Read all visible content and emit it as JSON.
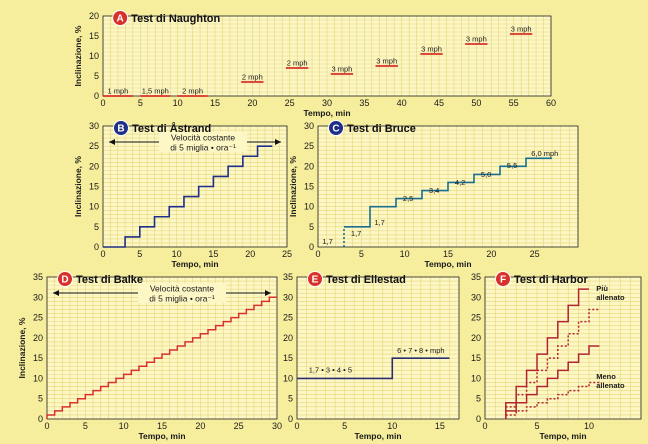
{
  "colors": {
    "background": "#f6ee9d",
    "plot": "#fdf7c6",
    "grid": "#e4d676",
    "red": "#d8312b",
    "navy": "#1f2e86",
    "teal": "#1b6f8a",
    "ellestad": "#2a2f6b",
    "harbor": "#b3242c"
  },
  "chart_data": [
    {
      "badge": "A",
      "title": "Test di Naughton",
      "type": "line",
      "xlabel": "Tempo, min",
      "ylabel": "Inclinazione, %",
      "xlim": [
        0,
        60
      ],
      "ylim": [
        0,
        20
      ],
      "xticks": [
        0,
        5,
        10,
        15,
        20,
        25,
        30,
        35,
        40,
        45,
        50,
        55,
        60
      ],
      "yticks": [
        0,
        5,
        10,
        15,
        20
      ],
      "stages": [
        {
          "x0": 0,
          "x1": 4,
          "y": 0,
          "label": "1 mph"
        },
        {
          "x0": 5,
          "x1": 9,
          "y": 0,
          "label": "1,5 mph"
        },
        {
          "x0": 10,
          "x1": 14,
          "y": 0,
          "label": "2 mph"
        },
        {
          "x0": 18.5,
          "x1": 21.5,
          "y": 3.5,
          "label": "2 mph"
        },
        {
          "x0": 24.5,
          "x1": 27.5,
          "y": 7,
          "label": "2 mph"
        },
        {
          "x0": 30.5,
          "x1": 33.5,
          "y": 5.5,
          "label": "3 mph"
        },
        {
          "x0": 36.5,
          "x1": 39.5,
          "y": 7.5,
          "label": "3 mph"
        },
        {
          "x0": 42.5,
          "x1": 45.5,
          "y": 10.5,
          "label": "3 mph"
        },
        {
          "x0": 48.5,
          "x1": 51.5,
          "y": 13,
          "label": "3 mph"
        },
        {
          "x0": 54.5,
          "x1": 57.5,
          "y": 15.5,
          "label": "3 mph"
        }
      ]
    },
    {
      "badge": "B",
      "title": "Test di Åstrand",
      "type": "line",
      "xlabel": "Tempo, min",
      "ylabel": "Inclinazione, %",
      "xlim": [
        0,
        25
      ],
      "ylim": [
        0,
        30
      ],
      "xticks": [
        0,
        5,
        10,
        15,
        20,
        25
      ],
      "yticks": [
        0,
        5,
        10,
        15,
        20,
        25,
        30
      ],
      "note": [
        "Velocità costante",
        "di 5 miglia • ora⁻¹"
      ],
      "steps": {
        "x": [
          0,
          3,
          5,
          7,
          9,
          11,
          13,
          15,
          17,
          19,
          21,
          23
        ],
        "y": [
          0,
          2.5,
          5,
          7.5,
          10,
          12.5,
          15,
          17.5,
          20,
          22.5,
          25,
          25
        ]
      }
    },
    {
      "badge": "C",
      "title": "Test di Bruce",
      "type": "line",
      "xlabel": "Tempo, min",
      "ylabel": "Inclinazione, %",
      "xlim": [
        0,
        30
      ],
      "ylim": [
        0,
        30
      ],
      "xticks": [
        0,
        5,
        10,
        15,
        20,
        25
      ],
      "yticks": [
        0,
        5,
        10,
        15,
        20,
        25,
        30
      ],
      "steps": {
        "x": [
          3,
          6,
          9,
          12,
          15,
          18,
          21,
          24,
          27
        ],
        "y": [
          5,
          10,
          12,
          14,
          16,
          18,
          20,
          22,
          22
        ]
      },
      "dotted": {
        "x": [
          3,
          3
        ],
        "y": [
          0,
          5
        ]
      },
      "speeds": [
        {
          "x": 0.5,
          "y": 0.7,
          "label": "1,7"
        },
        {
          "x": 3.8,
          "y": 2.7,
          "label": "1,7"
        },
        {
          "x": 6.5,
          "y": 5.5,
          "label": "1,7"
        },
        {
          "x": 9.8,
          "y": 11.4,
          "label": "2,5"
        },
        {
          "x": 12.8,
          "y": 13.4,
          "label": "3,4"
        },
        {
          "x": 15.8,
          "y": 15.4,
          "label": "4,2"
        },
        {
          "x": 18.8,
          "y": 17.4,
          "label": "5,0"
        },
        {
          "x": 21.8,
          "y": 19.6,
          "label": "5,5"
        },
        {
          "x": 24.6,
          "y": 22.6,
          "label": "6,0 mph"
        }
      ]
    },
    {
      "badge": "D",
      "title": "Test di Balke",
      "type": "line",
      "xlabel": "Tempo, min",
      "ylabel": "Inclinazione, %",
      "xlim": [
        0,
        30
      ],
      "ylim": [
        0,
        35
      ],
      "xticks": [
        0,
        5,
        10,
        15,
        20,
        25,
        30
      ],
      "yticks": [
        0,
        5,
        10,
        15,
        20,
        25,
        30,
        35
      ],
      "note": [
        "Velocità costante",
        "di 5 miglia • ora⁻¹"
      ],
      "step_every_min": 1,
      "step_size": 1,
      "start": 1,
      "end": 30
    },
    {
      "badge": "E",
      "title": "Test di Ellestad",
      "type": "line",
      "xlabel": "Tempo, min",
      "ylabel": "",
      "xlim": [
        0,
        17
      ],
      "ylim": [
        0,
        35
      ],
      "xticks": [
        0,
        5,
        10,
        15
      ],
      "yticks": [
        0,
        5,
        10,
        15,
        20,
        25,
        30,
        35
      ],
      "steps": {
        "x": [
          0,
          10,
          16
        ],
        "y": [
          10,
          15,
          15
        ]
      },
      "speed_labels": [
        {
          "x": 3.5,
          "y": 11.5,
          "label": "1,7 • 3 • 4 • 5"
        },
        {
          "x": 13,
          "y": 16.3,
          "label": "6 • 7 • 8 • mph"
        }
      ]
    },
    {
      "badge": "F",
      "title": "Test di Harbor",
      "type": "line",
      "xlabel": "Tempo, min",
      "ylabel": "",
      "xlim": [
        0,
        15
      ],
      "ylim": [
        0,
        35
      ],
      "xticks": [
        0,
        5,
        10
      ],
      "yticks": [
        0,
        5,
        10,
        15,
        20,
        25,
        30,
        35
      ],
      "labels": [
        {
          "x": 10.7,
          "y": 31.5,
          "label": "Più"
        },
        {
          "x": 10.7,
          "y": 29.3,
          "label": "allenato"
        },
        {
          "x": 10.7,
          "y": 9.8,
          "label": "Meno"
        },
        {
          "x": 10.7,
          "y": 7.6,
          "label": "allenato"
        }
      ],
      "series": [
        {
          "style": "solid",
          "dx": 1,
          "dy": 4,
          "steps": 8,
          "x0": 2,
          "y0": 0
        },
        {
          "style": "dotted",
          "dx": 1,
          "dy": 3,
          "steps": 9,
          "x0": 2,
          "y0": 0
        },
        {
          "style": "solid",
          "dx": 1,
          "dy": 2,
          "steps": 9,
          "x0": 2,
          "y0": 0
        },
        {
          "style": "dotted",
          "dx": 1,
          "dy": 1,
          "steps": 9,
          "x0": 2,
          "y0": 0
        }
      ]
    }
  ]
}
